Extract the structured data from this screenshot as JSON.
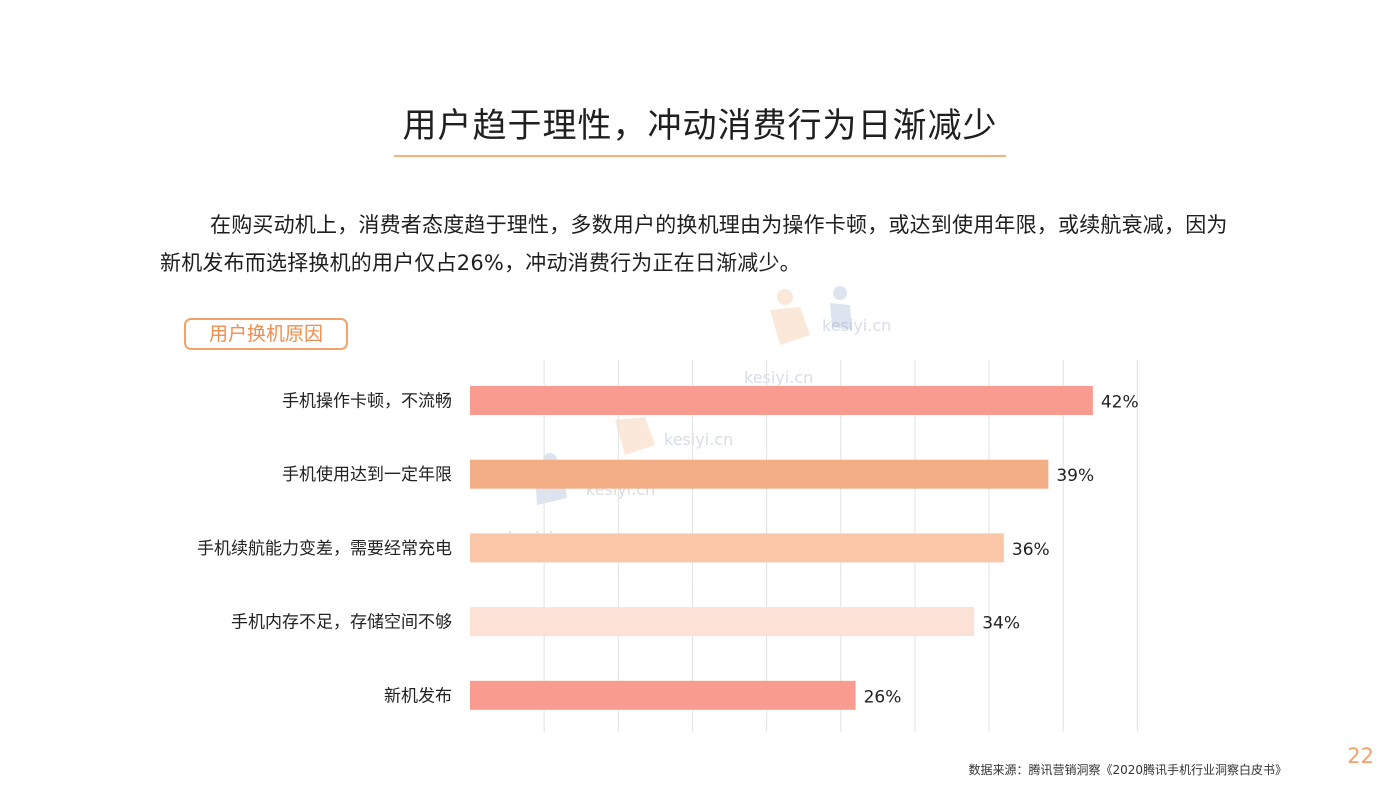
{
  "page": {
    "title": "用户趋于理性，冲动消费行为日渐减少",
    "intro": "在购买动机上，消费者态度趋于理性，多数用户的换机理由为操作卡顿，或达到使用年限，或续航衰减，因为新机发布而选择换机的用户仅占26%，冲动消费行为正在日渐减少。",
    "section_label": "用户换机原因",
    "source": "数据来源：腾讯营销洞察《2020腾讯手机行业洞察白皮书》",
    "page_number": "22",
    "watermark": "kesiyi.cn"
  },
  "chart_data": {
    "type": "bar",
    "orientation": "horizontal",
    "categories": [
      "手机操作卡顿，不流畅",
      "手机使用达到一定年限",
      "手机续航能力变差，需要经常充电",
      "手机内存不足，存储空间不够",
      "新机发布"
    ],
    "values": [
      42,
      39,
      36,
      34,
      26
    ],
    "value_labels": [
      "42%",
      "39%",
      "36%",
      "34%",
      "26%"
    ],
    "bar_colors": [
      "#fa9b90",
      "#f4ae85",
      "#f9c7a8",
      "#fce2d6",
      "#fa9b90"
    ],
    "xlim": [
      0,
      45
    ],
    "grid": true,
    "title": "",
    "xlabel": "",
    "ylabel": ""
  }
}
